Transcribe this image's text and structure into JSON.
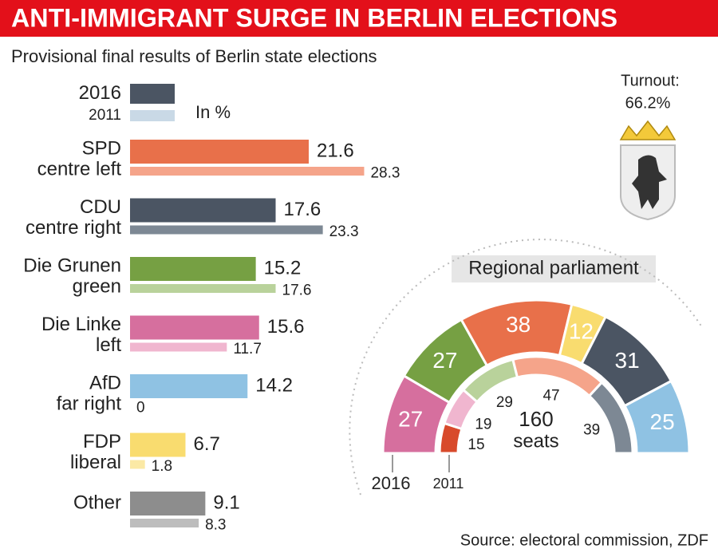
{
  "chart_data": [
    {
      "type": "bar",
      "orientation": "horizontal",
      "title": "ANTI-IMMIGRANT SURGE IN BERLIN ELECTIONS",
      "subtitle": "Provisional final results of Berlin state elections",
      "unit_label": "In %",
      "categories": [
        "SPD",
        "CDU",
        "Die Grunen",
        "Die Linke",
        "AfD",
        "FDP",
        "Other"
      ],
      "descriptions": [
        "centre left",
        "centre right",
        "green",
        "left",
        "far right",
        "liberal",
        null
      ],
      "series": [
        {
          "name": "2016",
          "color": "#4b5563",
          "bar_colors": [
            "#e8704a",
            "#4b5563",
            "#76a043",
            "#d66f9e",
            "#8fc2e3",
            "#f9dc6f",
            "#8d8d8d"
          ],
          "values": [
            21.6,
            17.6,
            15.2,
            15.6,
            14.2,
            6.7,
            9.1
          ]
        },
        {
          "name": "2011",
          "color": "#c9d9e6",
          "bar_colors": [
            "#f5a48a",
            "#7d8894",
            "#b9d29b",
            "#f0b6cf",
            "#b8dcf0",
            "#fbe9a5",
            "#bdbdbd"
          ],
          "values": [
            28.3,
            23.3,
            17.6,
            11.7,
            0,
            1.8,
            8.3
          ]
        }
      ]
    },
    {
      "type": "parliament",
      "title": "Regional parliament",
      "total": 160,
      "total_label": "seats",
      "series": [
        {
          "name": "2016",
          "colors": [
            "#d66f9e",
            "#76a043",
            "#e8704a",
            "#f9dc6f",
            "#4b5563",
            "#8fc2e3"
          ],
          "values": [
            27,
            27,
            38,
            12,
            31,
            25
          ]
        },
        {
          "name": "2011",
          "colors": [
            "#d84a2b",
            "#f0b6cf",
            "#b9d29b",
            "#f5a48a",
            "#7d8894"
          ],
          "values": [
            15,
            19,
            29,
            47,
            39
          ]
        }
      ]
    }
  ],
  "turnout": {
    "label": "Turnout:",
    "value": 66.2,
    "value_label": "66.2%"
  },
  "source": "Source: electoral commission, ZDF"
}
